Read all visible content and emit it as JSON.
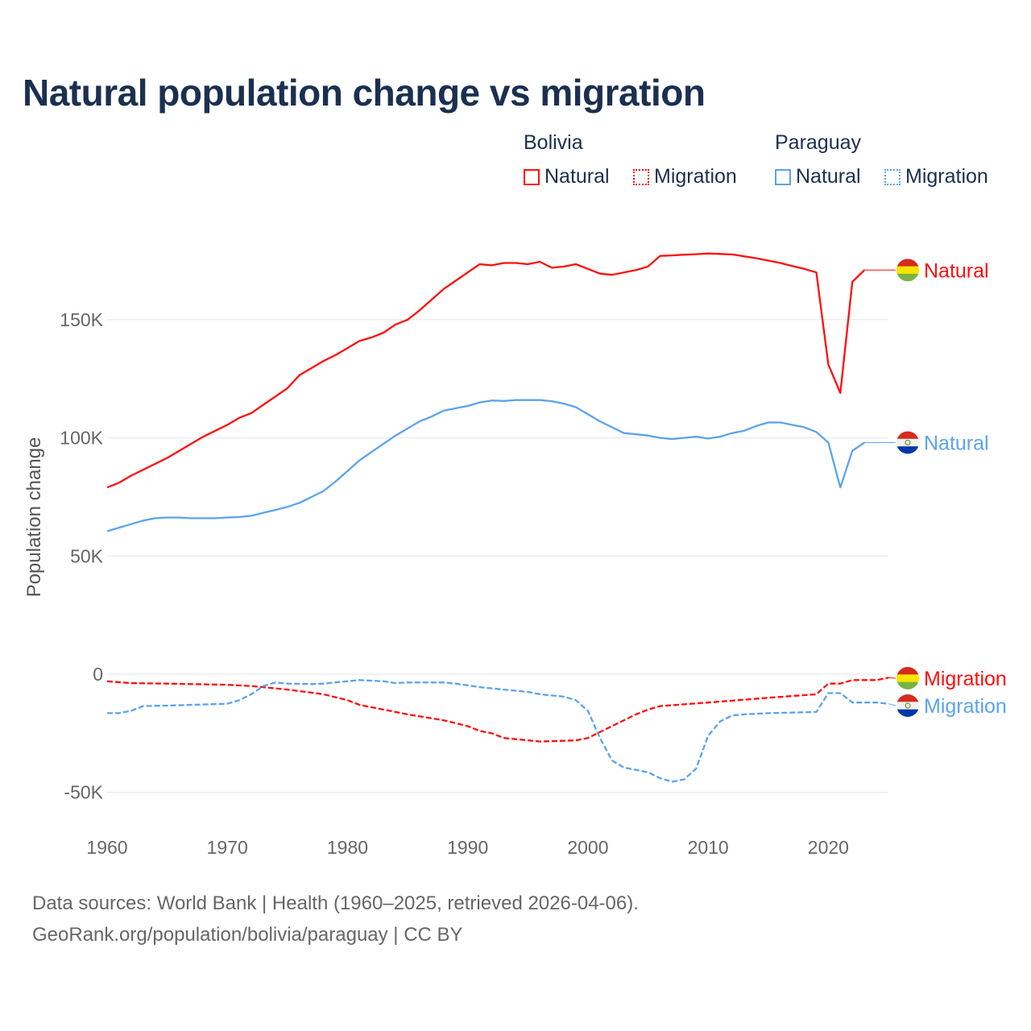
{
  "chart_data": {
    "type": "line",
    "title": "Natural population change vs migration",
    "ylabel": "Population change",
    "xlabel": "",
    "xlim": [
      1960,
      2025
    ],
    "ylim": [
      -55000,
      190000
    ],
    "yticks": [
      {
        "v": -50000,
        "label": "-50K"
      },
      {
        "v": 0,
        "label": "0"
      },
      {
        "v": 50000,
        "label": "50K"
      },
      {
        "v": 100000,
        "label": "100K"
      },
      {
        "v": 150000,
        "label": "150K"
      }
    ],
    "xticks": [
      {
        "v": 1960,
        "label": "1960"
      },
      {
        "v": 1970,
        "label": "1970"
      },
      {
        "v": 1980,
        "label": "1980"
      },
      {
        "v": 1990,
        "label": "1990"
      },
      {
        "v": 2000,
        "label": "2000"
      },
      {
        "v": 2010,
        "label": "2010"
      },
      {
        "v": 2020,
        "label": "2020"
      }
    ],
    "legend": {
      "groups": [
        {
          "name": "Bolivia",
          "items": [
            "Natural",
            "Migration"
          ]
        },
        {
          "name": "Paraguay",
          "items": [
            "Natural",
            "Migration"
          ]
        }
      ],
      "placement": "top-right"
    },
    "series": [
      {
        "name": "Bolivia Natural",
        "label": "Natural",
        "country": "Bolivia",
        "color": "#ff0d0d",
        "dash": false,
        "x": [
          1960,
          1961,
          1962,
          1963,
          1964,
          1965,
          1966,
          1967,
          1968,
          1969,
          1970,
          1971,
          1972,
          1973,
          1974,
          1975,
          1976,
          1977,
          1978,
          1979,
          1980,
          1981,
          1982,
          1983,
          1984,
          1985,
          1986,
          1987,
          1988,
          1989,
          1990,
          1991,
          1992,
          1993,
          1994,
          1995,
          1996,
          1997,
          1998,
          1999,
          2000,
          2001,
          2002,
          2003,
          2004,
          2005,
          2006,
          2007,
          2008,
          2009,
          2010,
          2011,
          2012,
          2013,
          2014,
          2015,
          2016,
          2017,
          2018,
          2019,
          2020,
          2021,
          2022,
          2023
        ],
        "y": [
          79000,
          81000,
          84000,
          86500,
          89000,
          91500,
          94500,
          97500,
          100500,
          103000,
          105500,
          108500,
          110500,
          114000,
          117500,
          121000,
          126500,
          129500,
          132500,
          135000,
          138000,
          141000,
          142500,
          144500,
          148000,
          150000,
          154000,
          158500,
          163000,
          166500,
          170000,
          173500,
          173000,
          174000,
          174000,
          173500,
          174500,
          172000,
          172500,
          173500,
          171500,
          169500,
          169000,
          170000,
          171000,
          172500,
          177000,
          177200,
          177500,
          177700,
          178000,
          177800,
          177600,
          176800,
          176000,
          175000,
          174000,
          172700,
          171500,
          170000,
          131000,
          119000,
          166000,
          171000
        ]
      },
      {
        "name": "Bolivia Migration",
        "label": "Migration",
        "country": "Bolivia",
        "color": "#ff0d0d",
        "dash": true,
        "x": [
          1960,
          1962,
          1965,
          1970,
          1972,
          1975,
          1978,
          1980,
          1981,
          1983,
          1985,
          1988,
          1990,
          1991,
          1992,
          1993,
          1996,
          1999,
          2000,
          2001,
          2002,
          2003,
          2004,
          2005,
          2006,
          2010,
          2015,
          2019,
          2020,
          2021,
          2022,
          2024,
          2025
        ],
        "y": [
          -3000,
          -3800,
          -4000,
          -4500,
          -5000,
          -6500,
          -8500,
          -11000,
          -13000,
          -15000,
          -17000,
          -19500,
          -22000,
          -24000,
          -25000,
          -27000,
          -28500,
          -28000,
          -27000,
          -24500,
          -22000,
          -19500,
          -17000,
          -15000,
          -13500,
          -12000,
          -10000,
          -8500,
          -4000,
          -4000,
          -2500,
          -2500,
          -1500
        ]
      },
      {
        "name": "Paraguay Natural",
        "label": "Natural",
        "country": "Paraguay",
        "color": "#5ba3ec",
        "dash": false,
        "x": [
          1960,
          1961,
          1962,
          1963,
          1964,
          1965,
          1966,
          1967,
          1968,
          1969,
          1970,
          1971,
          1972,
          1973,
          1974,
          1975,
          1976,
          1977,
          1978,
          1979,
          1980,
          1981,
          1982,
          1983,
          1984,
          1985,
          1986,
          1987,
          1988,
          1989,
          1990,
          1991,
          1992,
          1993,
          1994,
          1995,
          1996,
          1997,
          1998,
          1999,
          2000,
          2001,
          2002,
          2003,
          2004,
          2005,
          2006,
          2007,
          2008,
          2009,
          2010,
          2011,
          2012,
          2013,
          2014,
          2015,
          2016,
          2017,
          2018,
          2019,
          2020,
          2021,
          2022,
          2023
        ],
        "y": [
          60500,
          62000,
          63500,
          65000,
          66000,
          66300,
          66300,
          66000,
          66000,
          66000,
          66300,
          66500,
          67000,
          68300,
          69500,
          70800,
          72500,
          75000,
          77500,
          81500,
          86000,
          90500,
          94000,
          97500,
          101000,
          104000,
          107000,
          109000,
          111500,
          112500,
          113500,
          115000,
          115800,
          115600,
          116000,
          116000,
          116000,
          115500,
          114500,
          113000,
          110000,
          107000,
          104500,
          102000,
          101500,
          101000,
          100000,
          99500,
          100000,
          100500,
          99700,
          100500,
          102000,
          103000,
          105000,
          106500,
          106500,
          105500,
          104500,
          102500,
          98000,
          79000,
          94500,
          98000
        ]
      },
      {
        "name": "Paraguay Migration",
        "label": "Migration",
        "country": "Paraguay",
        "color": "#5ba3ec",
        "dash": true,
        "x": [
          1960,
          1961,
          1962,
          1963,
          1965,
          1970,
          1971,
          1972,
          1973,
          1974,
          1975,
          1977,
          1978,
          1980,
          1981,
          1983,
          1984,
          1985,
          1988,
          1989,
          1991,
          1993,
          1995,
          1996,
          1998,
          1999,
          2000,
          2001,
          2002,
          2003,
          2004,
          2005,
          2006,
          2007,
          2008,
          2009,
          2010,
          2011,
          2012,
          2013,
          2015,
          2019,
          2020,
          2021,
          2022,
          2024,
          2025
        ],
        "y": [
          -16500,
          -16500,
          -15500,
          -13500,
          -13300,
          -12500,
          -11000,
          -8500,
          -5000,
          -3500,
          -4000,
          -4200,
          -4000,
          -3000,
          -2500,
          -3000,
          -3800,
          -3500,
          -3500,
          -4000,
          -5500,
          -6500,
          -7500,
          -8500,
          -9500,
          -11000,
          -15500,
          -27000,
          -36500,
          -39500,
          -40500,
          -41500,
          -44000,
          -45500,
          -44500,
          -40000,
          -26000,
          -20000,
          -17500,
          -17000,
          -16500,
          -16000,
          -8000,
          -8000,
          -12000,
          -12000,
          -12500
        ]
      }
    ],
    "end_labels": [
      {
        "series": "Bolivia Natural",
        "text": "Natural",
        "flag": "bolivia-flag"
      },
      {
        "series": "Paraguay Natural",
        "text": "Natural",
        "flag": "paraguay-flag"
      },
      {
        "series": "Bolivia Migration",
        "text": "Migration",
        "flag": "bolivia-flag"
      },
      {
        "series": "Paraguay Migration",
        "text": "Migration",
        "flag": "paraguay-flag"
      }
    ]
  },
  "footer": {
    "line1": "Data sources: World Bank | Health (1960–2025, retrieved 2026-04-06).",
    "line2": "GeoRank.org/population/bolivia/paraguay | CC BY"
  }
}
